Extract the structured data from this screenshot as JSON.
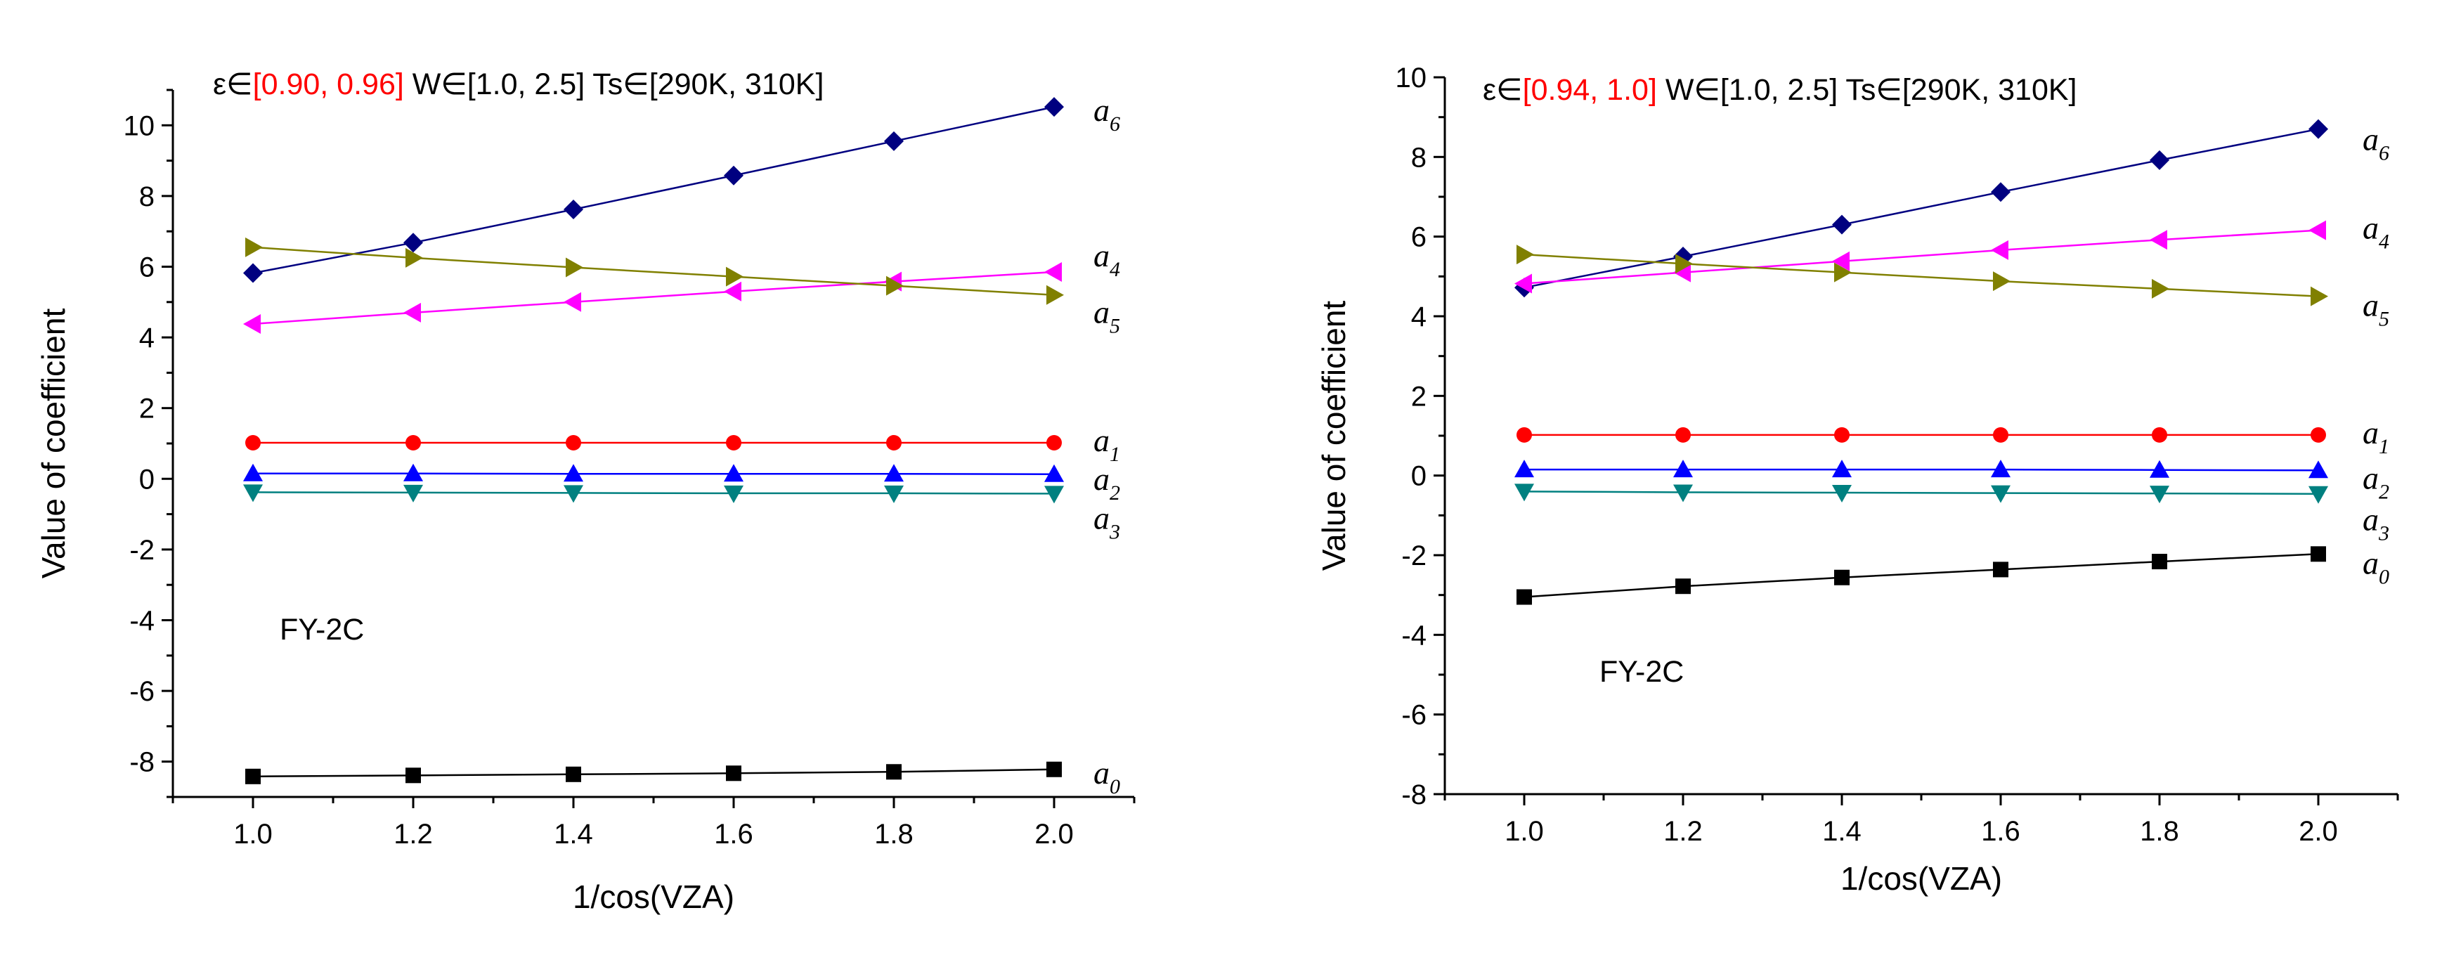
{
  "chart_data": [
    {
      "type": "line",
      "title_parts": [
        {
          "text": "ε∈",
          "color": "#000000"
        },
        {
          "text": "[0.90, 0.96]",
          "color": "#ff0000"
        },
        {
          "text": "  W∈[1.0, 2.5]  Ts∈[290K, 310K]",
          "color": "#000000"
        }
      ],
      "xlabel": "1/cos(VZA)",
      "ylabel": "Value of coefficient",
      "annotation": "FY-2C",
      "xlim": [
        0.9,
        2.1
      ],
      "ylim": [
        -9,
        11
      ],
      "xticks": [
        "1.0",
        "1.2",
        "1.4",
        "1.6",
        "1.8",
        "2.0"
      ],
      "yticks": [
        "-8",
        "-6",
        "-4",
        "-2",
        "0",
        "2",
        "4",
        "6",
        "8",
        "10"
      ],
      "x": [
        1.0,
        1.2,
        1.4,
        1.6,
        1.8,
        2.0
      ],
      "series": [
        {
          "name": "a6",
          "base": "a",
          "sub": "6",
          "color": "#000080",
          "marker": "diamond",
          "values": [
            5.82,
            6.68,
            7.62,
            8.58,
            9.55,
            10.52
          ]
        },
        {
          "name": "a4",
          "base": "a",
          "sub": "4",
          "color": "#ff00ff",
          "marker": "tri-left",
          "values": [
            4.38,
            4.7,
            5.0,
            5.3,
            5.58,
            5.85
          ]
        },
        {
          "name": "a5",
          "base": "a",
          "sub": "5",
          "color": "#808000",
          "marker": "tri-right",
          "values": [
            6.55,
            6.25,
            5.98,
            5.72,
            5.46,
            5.2
          ]
        },
        {
          "name": "a1",
          "base": "a",
          "sub": "1",
          "color": "#ff0000",
          "marker": "circle",
          "values": [
            1.02,
            1.02,
            1.02,
            1.02,
            1.02,
            1.02
          ]
        },
        {
          "name": "a2",
          "base": "a",
          "sub": "2",
          "color": "#0000ff",
          "marker": "tri-up",
          "values": [
            0.15,
            0.15,
            0.14,
            0.14,
            0.14,
            0.13
          ]
        },
        {
          "name": "a3",
          "base": "a",
          "sub": "3",
          "color": "#008080",
          "marker": "tri-down",
          "values": [
            -0.38,
            -0.39,
            -0.4,
            -0.41,
            -0.41,
            -0.42
          ]
        },
        {
          "name": "a0",
          "base": "a",
          "sub": "0",
          "color": "#000000",
          "marker": "square",
          "values": [
            -8.42,
            -8.39,
            -8.36,
            -8.33,
            -8.29,
            -8.22
          ]
        }
      ]
    },
    {
      "type": "line",
      "title_parts": [
        {
          "text": "ε∈",
          "color": "#000000"
        },
        {
          "text": "[0.94, 1.0]",
          "color": "#ff0000"
        },
        {
          "text": "  W∈[1.0, 2.5]  Ts∈[290K, 310K]",
          "color": "#000000"
        }
      ],
      "xlabel": "1/cos(VZA)",
      "ylabel": "Value of coefficient",
      "annotation": "FY-2C",
      "xlim": [
        0.9,
        2.1
      ],
      "ylim": [
        -8,
        10
      ],
      "xticks": [
        "1.0",
        "1.2",
        "1.4",
        "1.6",
        "1.8",
        "2.0"
      ],
      "yticks": [
        "-8",
        "-6",
        "-4",
        "-2",
        "0",
        "2",
        "4",
        "6",
        "8",
        "10"
      ],
      "x": [
        1.0,
        1.2,
        1.4,
        1.6,
        1.8,
        2.0
      ],
      "series": [
        {
          "name": "a6",
          "base": "a",
          "sub": "6",
          "color": "#000080",
          "marker": "diamond",
          "values": [
            4.72,
            5.5,
            6.3,
            7.12,
            7.92,
            8.7
          ]
        },
        {
          "name": "a4",
          "base": "a",
          "sub": "4",
          "color": "#ff00ff",
          "marker": "tri-left",
          "values": [
            4.82,
            5.1,
            5.38,
            5.66,
            5.92,
            6.16
          ]
        },
        {
          "name": "a5",
          "base": "a",
          "sub": "5",
          "color": "#808000",
          "marker": "tri-right",
          "values": [
            5.55,
            5.32,
            5.1,
            4.88,
            4.69,
            4.5
          ]
        },
        {
          "name": "a1",
          "base": "a",
          "sub": "1",
          "color": "#ff0000",
          "marker": "circle",
          "values": [
            1.02,
            1.02,
            1.02,
            1.02,
            1.02,
            1.02
          ]
        },
        {
          "name": "a2",
          "base": "a",
          "sub": "2",
          "color": "#0000ff",
          "marker": "tri-up",
          "values": [
            0.15,
            0.15,
            0.15,
            0.15,
            0.14,
            0.13
          ]
        },
        {
          "name": "a3",
          "base": "a",
          "sub": "3",
          "color": "#008080",
          "marker": "tri-down",
          "values": [
            -0.4,
            -0.42,
            -0.43,
            -0.44,
            -0.45,
            -0.46
          ]
        },
        {
          "name": "a0",
          "base": "a",
          "sub": "0",
          "color": "#000000",
          "marker": "square",
          "values": [
            -3.05,
            -2.78,
            -2.56,
            -2.36,
            -2.16,
            -1.97
          ]
        }
      ]
    }
  ]
}
